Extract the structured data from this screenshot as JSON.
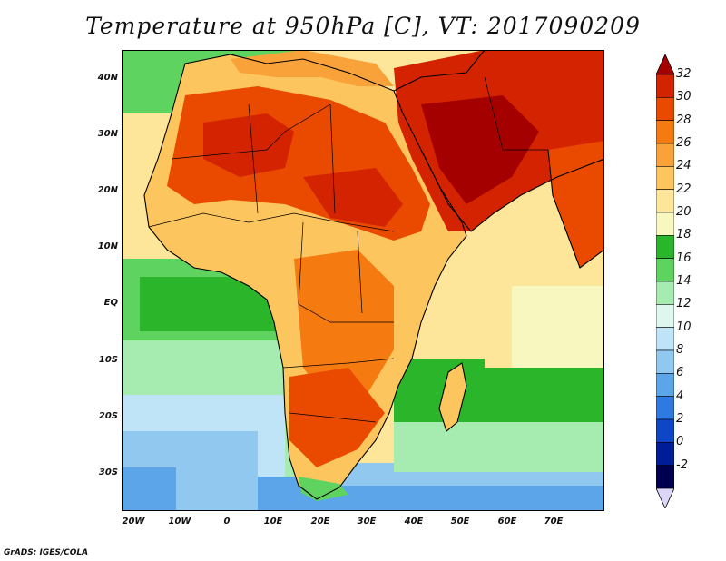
{
  "title": "Temperature at 950hPa [C], VT: 2017090209",
  "credit": "GrADS: IGES/COLA",
  "lat_labels": [
    "40N",
    "30N",
    "20N",
    "10N",
    "EQ",
    "10S",
    "20S",
    "30S"
  ],
  "lon_labels": [
    "20W",
    "10W",
    "0",
    "10E",
    "20E",
    "30E",
    "40E",
    "50E",
    "60E",
    "70E"
  ],
  "colorbar": {
    "levels": [
      "32",
      "30",
      "28",
      "26",
      "24",
      "22",
      "20",
      "18",
      "16",
      "14",
      "12",
      "10",
      "8",
      "6",
      "4",
      "2",
      "0",
      "-2"
    ],
    "colors": [
      "#a50000",
      "#d42300",
      "#ea4a00",
      "#f57a10",
      "#f9a23a",
      "#fcc55e",
      "#fde69a",
      "#f9f7c0",
      "#2ab52a",
      "#5fd35f",
      "#a6ebb0",
      "#ddf7ee",
      "#bfe4f7",
      "#90c8f0",
      "#5ba5e8",
      "#2f7ae0",
      "#0f46c8",
      "#001c96",
      "#000050",
      "#dcd6f8"
    ]
  },
  "colors": {
    "ocean_cool": "#8fc4ee",
    "ocean_warm": "#2fb82f",
    "land_hot": "#d42300",
    "land_warm": "#f57a10",
    "border": "#000000"
  }
}
